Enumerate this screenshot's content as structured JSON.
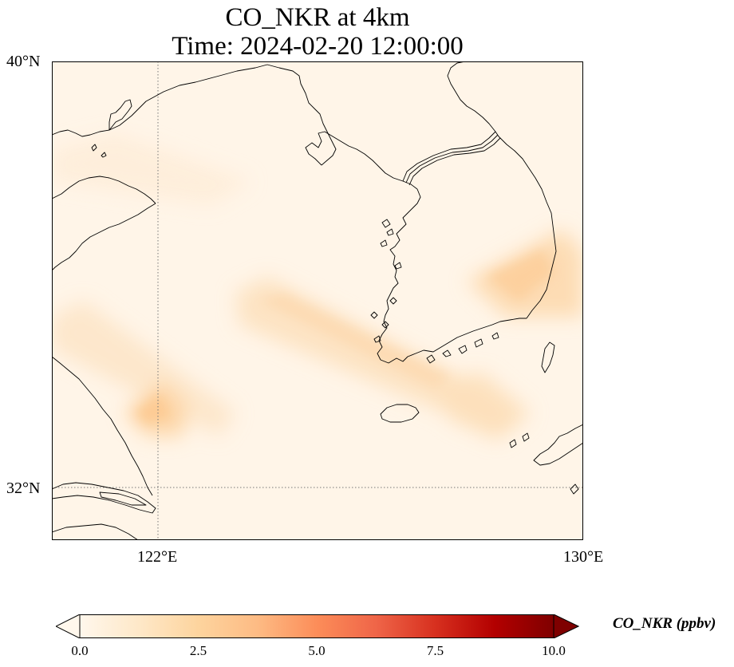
{
  "title": {
    "line1": "CO_NKR at 4km",
    "line2": "Time: 2024-02-20 12:00:00"
  },
  "map": {
    "variable": "CO_NKR",
    "altitude": "4km",
    "time": "2024-02-20 12:00:00",
    "lon_range": [
      119.5,
      130
    ],
    "lat_range": [
      31,
      40
    ],
    "gridlines": "dotted",
    "lat_ticks": [
      {
        "value": 40,
        "label": "40°N"
      },
      {
        "value": 32,
        "label": "32°N"
      }
    ],
    "lon_ticks": [
      {
        "value": 122,
        "label": "122°E"
      },
      {
        "value": 130,
        "label": "130°E"
      }
    ],
    "plumes": [
      {
        "name": "central-yellow-sea-band",
        "level_ppbv": 1.5
      },
      {
        "name": "shandong-coast-band",
        "level_ppbv": 1.2
      },
      {
        "name": "yangtze-delta-patch",
        "level_ppbv": 1.8
      },
      {
        "name": "east-korea-patch",
        "level_ppbv": 1.6
      },
      {
        "name": "korea-strait-band",
        "level_ppbv": 1.3
      }
    ],
    "colors": {
      "background": "#fff5e8",
      "coastline": "#000000",
      "plume_core": "#fdd49e"
    }
  },
  "colorbar": {
    "label": "CO_NKR (ppbv)",
    "cmap": "OrRd",
    "range": [
      0,
      10
    ],
    "extend": "both",
    "ticks": [
      "0.0",
      "2.5",
      "5.0",
      "7.5",
      "10.0"
    ],
    "tick_values": [
      0,
      2.5,
      5,
      7.5,
      10
    ],
    "colors": [
      "#fff7ec",
      "#fee8c8",
      "#fdd49e",
      "#fdbb84",
      "#fc8d59",
      "#ef6548",
      "#d7301f",
      "#b30000",
      "#7f0000"
    ]
  }
}
